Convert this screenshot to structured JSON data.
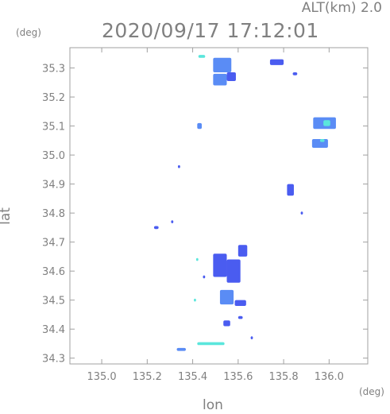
{
  "chart_data": {
    "type": "heatmap",
    "title": "2020/09/17 17:12:01",
    "altitude_label": "ALT(km) 2.0",
    "xlabel": "lon",
    "ylabel": "lat",
    "x_unit": "(deg)",
    "y_unit": "(deg)",
    "xlim": [
      134.86,
      136.17
    ],
    "ylim": [
      34.28,
      35.37
    ],
    "x_ticks": [
      "135.0",
      "135.2",
      "135.4",
      "135.6",
      "135.8",
      "136.0"
    ],
    "y_ticks": [
      "34.3",
      "34.4",
      "34.5",
      "34.6",
      "34.7",
      "34.8",
      "34.9",
      "35.0",
      "35.1",
      "35.2",
      "35.3"
    ],
    "grid": false,
    "colors": {
      "low": "#4a5cf0",
      "mid": "#5a8cf5",
      "high": "#5ae6dc",
      "axis": "#a0a0a0"
    },
    "cells": [
      {
        "lon": 135.53,
        "lat": 35.31,
        "w": 0.08,
        "h": 0.05,
        "level": "mid"
      },
      {
        "lon": 135.52,
        "lat": 35.26,
        "w": 0.06,
        "h": 0.04,
        "level": "mid"
      },
      {
        "lon": 135.57,
        "lat": 35.27,
        "w": 0.04,
        "h": 0.03,
        "level": "low"
      },
      {
        "lon": 135.44,
        "lat": 35.34,
        "w": 0.03,
        "h": 0.01,
        "level": "high"
      },
      {
        "lon": 135.77,
        "lat": 35.32,
        "w": 0.06,
        "h": 0.02,
        "level": "low"
      },
      {
        "lon": 135.85,
        "lat": 35.28,
        "w": 0.02,
        "h": 0.01,
        "level": "low"
      },
      {
        "lon": 135.98,
        "lat": 35.11,
        "w": 0.1,
        "h": 0.04,
        "level": "mid"
      },
      {
        "lon": 135.99,
        "lat": 35.11,
        "w": 0.03,
        "h": 0.02,
        "level": "high"
      },
      {
        "lon": 135.96,
        "lat": 35.04,
        "w": 0.07,
        "h": 0.03,
        "level": "mid"
      },
      {
        "lon": 135.97,
        "lat": 35.05,
        "w": 0.02,
        "h": 0.01,
        "level": "high"
      },
      {
        "lon": 135.43,
        "lat": 35.1,
        "w": 0.02,
        "h": 0.02,
        "level": "mid"
      },
      {
        "lon": 135.34,
        "lat": 34.96,
        "w": 0.01,
        "h": 0.01,
        "level": "low"
      },
      {
        "lon": 135.83,
        "lat": 34.88,
        "w": 0.03,
        "h": 0.04,
        "level": "low"
      },
      {
        "lon": 135.88,
        "lat": 34.8,
        "w": 0.01,
        "h": 0.01,
        "level": "low"
      },
      {
        "lon": 135.24,
        "lat": 34.75,
        "w": 0.02,
        "h": 0.01,
        "level": "low"
      },
      {
        "lon": 135.31,
        "lat": 34.77,
        "w": 0.01,
        "h": 0.01,
        "level": "low"
      },
      {
        "lon": 135.52,
        "lat": 34.62,
        "w": 0.06,
        "h": 0.08,
        "level": "low"
      },
      {
        "lon": 135.58,
        "lat": 34.6,
        "w": 0.06,
        "h": 0.08,
        "level": "low"
      },
      {
        "lon": 135.62,
        "lat": 34.67,
        "w": 0.04,
        "h": 0.04,
        "level": "low"
      },
      {
        "lon": 135.55,
        "lat": 34.51,
        "w": 0.06,
        "h": 0.05,
        "level": "mid"
      },
      {
        "lon": 135.61,
        "lat": 34.49,
        "w": 0.05,
        "h": 0.02,
        "level": "low"
      },
      {
        "lon": 135.42,
        "lat": 34.64,
        "w": 0.01,
        "h": 0.01,
        "level": "high"
      },
      {
        "lon": 135.41,
        "lat": 34.5,
        "w": 0.01,
        "h": 0.01,
        "level": "high"
      },
      {
        "lon": 135.45,
        "lat": 34.58,
        "w": 0.01,
        "h": 0.01,
        "level": "low"
      },
      {
        "lon": 135.55,
        "lat": 34.42,
        "w": 0.03,
        "h": 0.02,
        "level": "low"
      },
      {
        "lon": 135.61,
        "lat": 34.44,
        "w": 0.02,
        "h": 0.01,
        "level": "low"
      },
      {
        "lon": 135.48,
        "lat": 34.35,
        "w": 0.12,
        "h": 0.01,
        "level": "high"
      },
      {
        "lon": 135.35,
        "lat": 34.33,
        "w": 0.04,
        "h": 0.01,
        "level": "mid"
      },
      {
        "lon": 135.66,
        "lat": 34.37,
        "w": 0.01,
        "h": 0.01,
        "level": "low"
      }
    ]
  }
}
